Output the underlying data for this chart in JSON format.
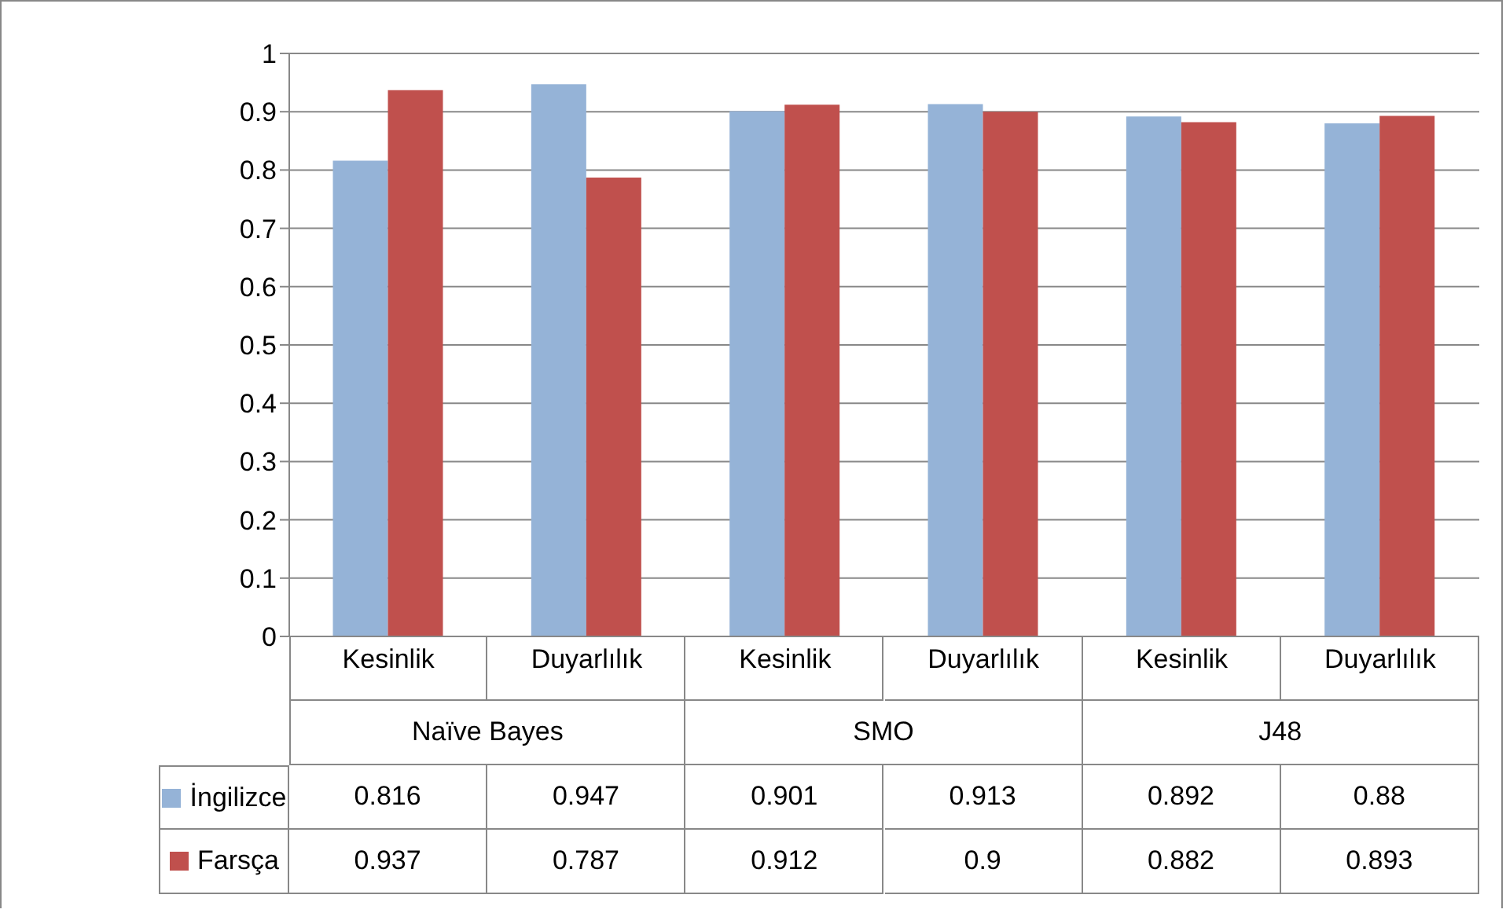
{
  "chart_data": {
    "type": "bar",
    "categories": [
      "Kesinlik",
      "Duyarlılık",
      "Kesinlik",
      "Duyarlılık",
      "Kesinlik",
      "Duyarlılık"
    ],
    "annotations": [
      "Naïve Bayes",
      "SMO",
      "J48"
    ],
    "series": [
      {
        "name": "İngilizce",
        "color": "#95b3d7",
        "values": [
          0.816,
          0.947,
          0.901,
          0.913,
          0.892,
          0.88
        ]
      },
      {
        "name": "Farsça",
        "color": "#c0504d",
        "values": [
          0.937,
          0.787,
          0.912,
          0.9,
          0.882,
          0.893
        ]
      }
    ],
    "ylim": [
      0,
      1
    ],
    "yticks": [
      0,
      0.1,
      0.2,
      0.3,
      0.4,
      0.5,
      0.6,
      0.7,
      0.8,
      0.9,
      1
    ],
    "grid": "y",
    "legend": "bottom",
    "data_labels": true
  }
}
